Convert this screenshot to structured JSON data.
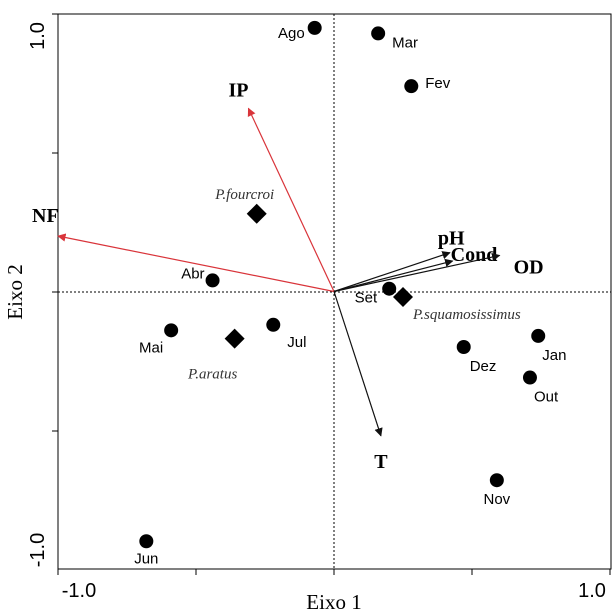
{
  "chart_data": {
    "type": "scatter",
    "title": "",
    "xlabel": "Eixo 1",
    "ylabel": "Eixo 2",
    "xlim": [
      -1.0,
      1.0
    ],
    "ylim": [
      -1.0,
      1.0
    ],
    "x_tick_labels": [
      "-1.0",
      "1.0"
    ],
    "y_tick_labels": [
      "-1.0",
      "1.0"
    ],
    "zero_lines": true,
    "months": [
      {
        "label": "Ago",
        "x": -0.07,
        "y": 0.95
      },
      {
        "label": "Mar",
        "x": 0.16,
        "y": 0.93
      },
      {
        "label": "Fev",
        "x": 0.28,
        "y": 0.74
      },
      {
        "label": "Abr",
        "x": -0.44,
        "y": 0.04
      },
      {
        "label": "Set",
        "x": 0.2,
        "y": 0.01
      },
      {
        "label": "Mai",
        "x": -0.59,
        "y": -0.14
      },
      {
        "label": "Jul",
        "x": -0.22,
        "y": -0.12
      },
      {
        "label": "Dez",
        "x": 0.47,
        "y": -0.2
      },
      {
        "label": "Jan",
        "x": 0.74,
        "y": -0.16
      },
      {
        "label": "Out",
        "x": 0.71,
        "y": -0.31
      },
      {
        "label": "Nov",
        "x": 0.59,
        "y": -0.68
      },
      {
        "label": "Jun",
        "x": -0.68,
        "y": -0.9
      }
    ],
    "species": [
      {
        "label": "P.fourcroi",
        "x": -0.28,
        "y": 0.28
      },
      {
        "label": "P.squamosissimus",
        "x": 0.25,
        "y": -0.02
      },
      {
        "label": "P.aratus",
        "x": -0.36,
        "y": -0.17
      }
    ],
    "vectors": [
      {
        "label": "IP",
        "x": -0.31,
        "y": 0.66,
        "color": "#d9343a"
      },
      {
        "label": "NF",
        "x": -1.0,
        "y": 0.2,
        "color": "#d9343a"
      },
      {
        "label": "pH",
        "x": 0.42,
        "y": 0.14,
        "color": "#111111"
      },
      {
        "label": "Cond",
        "x": 0.43,
        "y": 0.11,
        "color": "#111111"
      },
      {
        "label": "OD",
        "x": 0.6,
        "y": 0.13,
        "color": "#111111"
      },
      {
        "label": "T",
        "x": 0.17,
        "y": -0.52,
        "color": "#111111"
      }
    ]
  }
}
